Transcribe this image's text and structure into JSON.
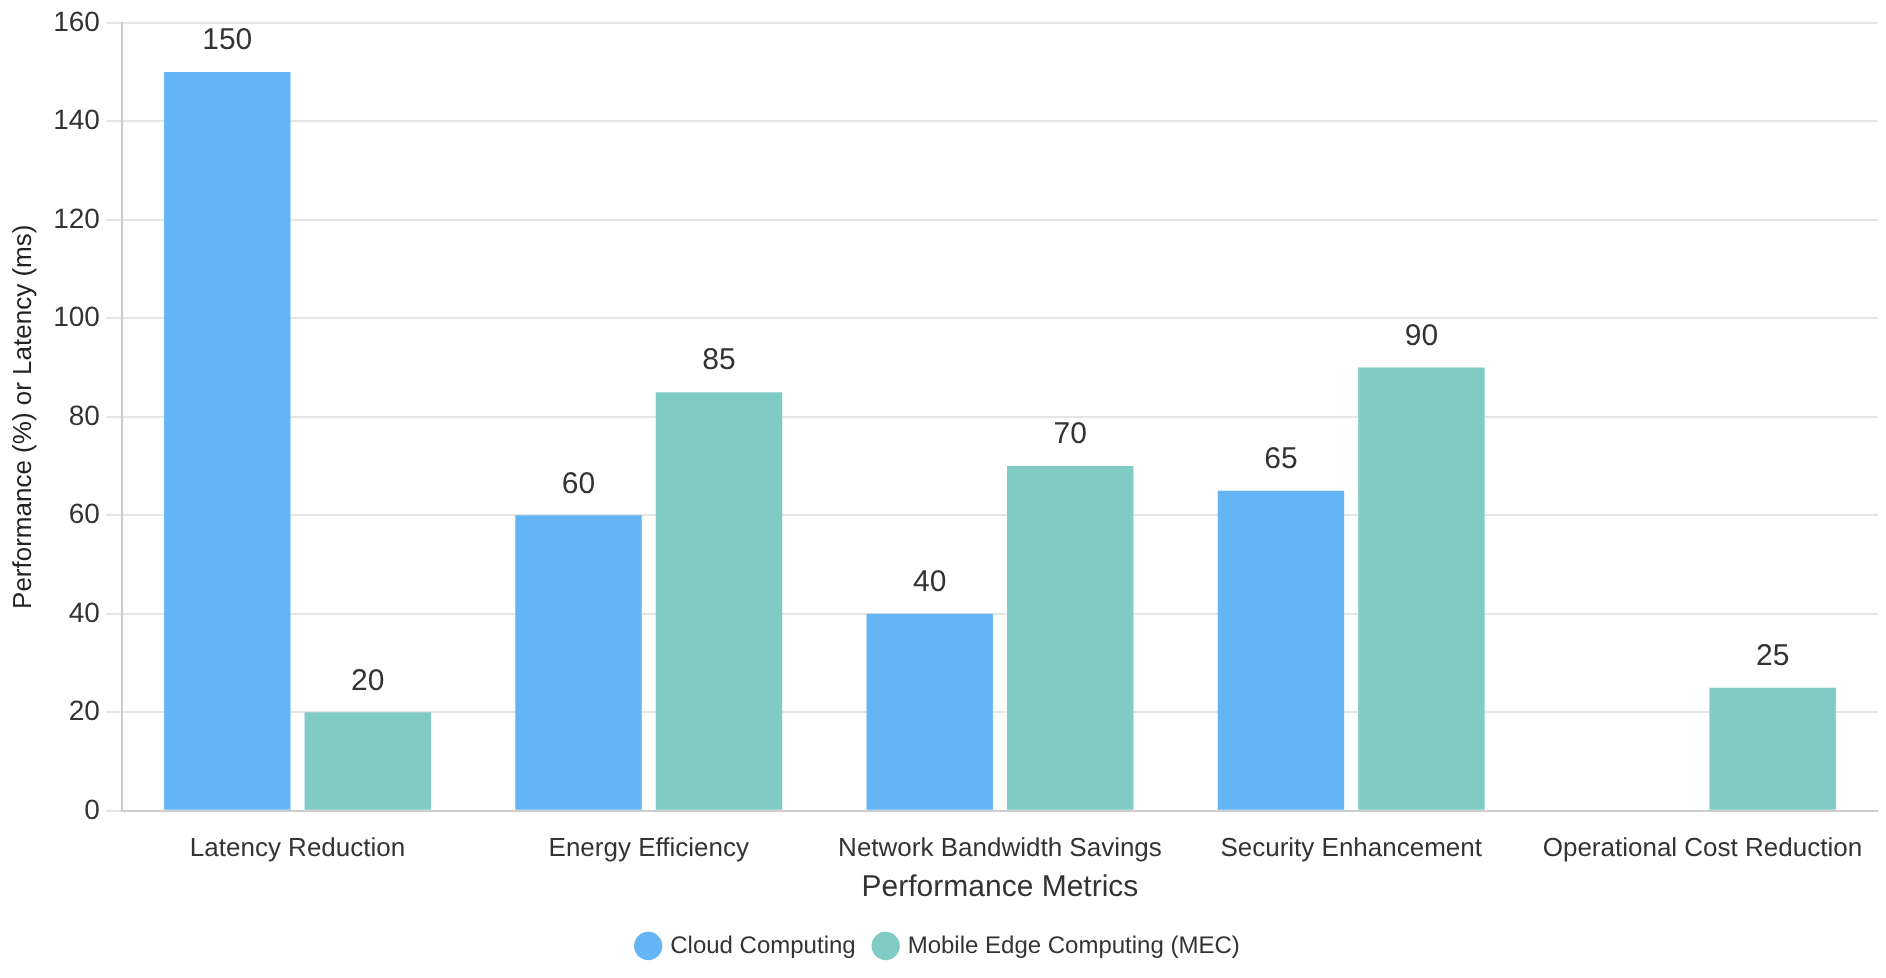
{
  "chart_data": {
    "type": "bar",
    "xlabel": "Performance Metrics",
    "ylabel": "Performance (%) or Latency (ms)",
    "categories": [
      "Latency Reduction",
      "Energy Efficiency",
      "Network Bandwidth Savings",
      "Security Enhancement",
      "Operational Cost Reduction"
    ],
    "series": [
      {
        "name": "Cloud Computing",
        "color": "#64b5f6",
        "values": [
          150,
          60,
          40,
          65,
          null
        ]
      },
      {
        "name": "Mobile Edge Computing (MEC)",
        "color": "#80cbc4",
        "values": [
          20,
          85,
          70,
          90,
          25
        ]
      }
    ],
    "ylim": [
      0,
      160
    ],
    "yticks": [
      0,
      20,
      40,
      60,
      80,
      100,
      120,
      140,
      160
    ],
    "grid": "y",
    "legend": "bottom",
    "data_labels": true
  }
}
